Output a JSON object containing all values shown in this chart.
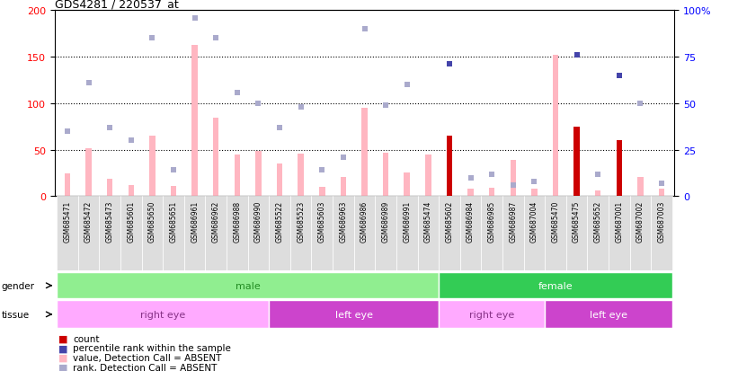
{
  "title": "GDS4281 / 220537_at",
  "samples": [
    "GSM685471",
    "GSM685472",
    "GSM685473",
    "GSM685601",
    "GSM685650",
    "GSM685651",
    "GSM686961",
    "GSM686962",
    "GSM686988",
    "GSM686990",
    "GSM685522",
    "GSM685523",
    "GSM685603",
    "GSM686963",
    "GSM686986",
    "GSM686989",
    "GSM686991",
    "GSM685474",
    "GSM685602",
    "GSM686984",
    "GSM686985",
    "GSM686987",
    "GSM687004",
    "GSM685470",
    "GSM685475",
    "GSM685652",
    "GSM687001",
    "GSM687002",
    "GSM687003"
  ],
  "pink_values": [
    25,
    52,
    19,
    12,
    65,
    11,
    163,
    84,
    45,
    49,
    35,
    46,
    10,
    21,
    95,
    47,
    26,
    45,
    65,
    8,
    9,
    39,
    8,
    152,
    75,
    6,
    60,
    21,
    8
  ],
  "blue_sq_values": [
    35,
    61,
    37,
    30,
    85,
    14,
    96,
    85,
    56,
    50,
    37,
    48,
    14,
    21,
    90,
    49,
    60,
    0,
    71,
    10,
    12,
    6,
    8,
    0,
    76,
    12,
    65,
    50,
    7
  ],
  "red_values": [
    0,
    0,
    0,
    0,
    0,
    0,
    0,
    0,
    0,
    0,
    0,
    0,
    0,
    0,
    0,
    0,
    0,
    0,
    65,
    0,
    0,
    0,
    0,
    0,
    75,
    0,
    60,
    0,
    0
  ],
  "is_absent_pink": [
    true,
    true,
    true,
    true,
    true,
    true,
    true,
    true,
    true,
    true,
    true,
    true,
    true,
    true,
    true,
    true,
    true,
    true,
    false,
    true,
    true,
    true,
    true,
    true,
    false,
    true,
    false,
    true,
    true
  ],
  "is_absent_blue": [
    true,
    true,
    true,
    true,
    true,
    true,
    true,
    true,
    true,
    true,
    true,
    true,
    true,
    true,
    true,
    true,
    true,
    false,
    false,
    true,
    true,
    true,
    true,
    false,
    false,
    true,
    false,
    true,
    true
  ],
  "gender_groups": [
    {
      "label": "male",
      "start": 0,
      "end": 17,
      "color": "#90EE90"
    },
    {
      "label": "female",
      "start": 18,
      "end": 28,
      "color": "#33CC55"
    }
  ],
  "tissue_groups": [
    {
      "label": "right eye",
      "start": 0,
      "end": 9,
      "color": "#FFAAFF"
    },
    {
      "label": "left eye",
      "start": 10,
      "end": 17,
      "color": "#CC44CC"
    },
    {
      "label": "right eye",
      "start": 18,
      "end": 22,
      "color": "#FFAAFF"
    },
    {
      "label": "left eye",
      "start": 23,
      "end": 28,
      "color": "#CC44CC"
    }
  ],
  "ylim_left": [
    0,
    200
  ],
  "ylim_right": [
    0,
    100
  ],
  "left_yticks": [
    0,
    50,
    100,
    150,
    200
  ],
  "right_yticks": [
    0,
    25,
    50,
    75,
    100
  ],
  "right_yticklabels": [
    "0",
    "25",
    "50",
    "75",
    "100%"
  ],
  "pink_absent_color": "#FFB6C1",
  "red_color": "#CC0000",
  "blue_present_color": "#4444AA",
  "blue_absent_color": "#AAAACC",
  "bar_width": 0.5,
  "sq_size": 4,
  "xticklabel_bg": "#DDDDDD"
}
